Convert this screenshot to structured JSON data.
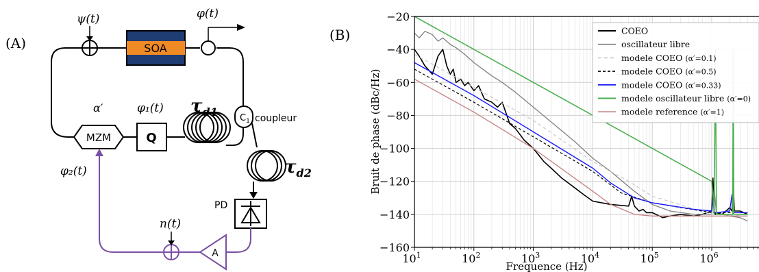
{
  "panel_a": {
    "label": "(A)",
    "psi": "ψ(t)",
    "phi": "φ(t)",
    "soa": "SOA",
    "tau_d1": "τ",
    "tau_d1_sub": "d1",
    "tau_d2": "τ",
    "tau_d2_sub": "d2",
    "alpha": "α′",
    "phi1": "φ₁(t)",
    "phi2": "φ₂(t)",
    "mzm": "MZM",
    "q": "Q",
    "c1": "C",
    "c1_sub": "1",
    "coupler": "coupleur",
    "pd": "PD",
    "n": "n(t)",
    "amp": "A"
  },
  "panel_b": {
    "label": "(B)"
  },
  "colors": {
    "soa_blue": "#1f3c73",
    "soa_orange": "#f08a24",
    "feedback_purple": "#7a4ea3",
    "coeo": "#000000",
    "free": "#808080",
    "model01": "#c8c8c8",
    "model05": "#000000",
    "model033": "#1a1aff",
    "free_model": "#4caf50",
    "reference": "#c48080"
  },
  "chart_data": {
    "type": "line",
    "title": "",
    "xlabel": "Frequence (Hz)",
    "ylabel": "Bruit de phase (dBc/Hz)",
    "xscale": "log",
    "xlim": [
      10,
      4000000
    ],
    "ylim": [
      -160,
      -20
    ],
    "yticks": [
      -160,
      -140,
      -120,
      -100,
      -80,
      -60,
      -40,
      -20
    ],
    "xticks": [
      {
        "value": 10,
        "base": "10",
        "exp": "1"
      },
      {
        "value": 100,
        "base": "10",
        "exp": "2"
      },
      {
        "value": 1000,
        "base": "10",
        "exp": "3"
      },
      {
        "value": 10000,
        "base": "10",
        "exp": "4"
      },
      {
        "value": 100000,
        "base": "10",
        "exp": "5"
      },
      {
        "value": 1000000,
        "base": "10",
        "exp": "6"
      }
    ],
    "grid": true,
    "legend_position": "top-right",
    "series": [
      {
        "key": "coeo",
        "name": "COEO",
        "param": "",
        "color": "#000000",
        "dash": "",
        "width": 1.6,
        "x": [
          10,
          12,
          15,
          20,
          25,
          30,
          35,
          40,
          45,
          50,
          60,
          70,
          80,
          100,
          120,
          150,
          200,
          250,
          300,
          400,
          500,
          700,
          1000,
          1500,
          2000,
          3000,
          5000,
          7000,
          10000,
          20000,
          40000,
          45000,
          50000,
          60000,
          70000,
          80000,
          100000,
          150000,
          200000,
          300000,
          500000,
          700000,
          1000000,
          1050000,
          1100000,
          1150000,
          1200000,
          1500000,
          2000000,
          2200000,
          2300000,
          2400000,
          3000000,
          4000000
        ],
        "y": [
          -40,
          -44,
          -50,
          -55,
          -44,
          -40,
          -50,
          -55,
          -52,
          -60,
          -58,
          -62,
          -60,
          -65,
          -62,
          -70,
          -72,
          -75,
          -72,
          -85,
          -88,
          -95,
          -100,
          -108,
          -112,
          -118,
          -124,
          -128,
          -132,
          -134,
          -135,
          -129,
          -135,
          -138,
          -137,
          -139,
          -139,
          -142,
          -141,
          -140,
          -141,
          -140,
          -138,
          -118,
          -138,
          -140,
          -139,
          -140,
          -136,
          -138,
          -120,
          -138,
          -138,
          -140
        ]
      },
      {
        "key": "free",
        "name": "oscillateur libre",
        "param": "",
        "color": "#808080",
        "dash": "",
        "width": 1.3,
        "x": [
          10,
          12,
          15,
          20,
          25,
          30,
          40,
          50,
          70,
          100,
          200,
          300,
          500,
          1000,
          2000,
          5000,
          10000,
          20000,
          50000,
          100000,
          200000,
          500000,
          1000000,
          1100000,
          1200000,
          1500000,
          2000000,
          3000000,
          4000000
        ],
        "y": [
          -30,
          -33,
          -29,
          -31,
          -35,
          -33,
          -37,
          -39,
          -43,
          -48,
          -56,
          -60,
          -66,
          -75,
          -84,
          -96,
          -106,
          -114,
          -126,
          -134,
          -138,
          -140,
          -140,
          -124,
          -140,
          -140,
          -141,
          -142,
          -144
        ]
      },
      {
        "key": "model01",
        "name": "modele COEO ",
        "param": "(α′=0.1)",
        "color": "#c8c8c8",
        "dash": "5,4",
        "width": 1.2,
        "x": [
          10,
          100,
          1000,
          10000,
          40000,
          100000,
          1000000,
          4000000
        ],
        "y": [
          -43,
          -63,
          -83,
          -108,
          -120,
          -129,
          -140,
          -141
        ]
      },
      {
        "key": "model05",
        "name": "modele COEO ",
        "param": "(α′=0.5)",
        "color": "#000000",
        "dash": "4,3",
        "width": 1.2,
        "x": [
          10,
          100,
          1000,
          10000,
          30000,
          100000,
          1000000,
          4000000
        ],
        "y": [
          -52,
          -72,
          -93,
          -114,
          -127,
          -133,
          -139,
          -139
        ]
      },
      {
        "key": "model033",
        "name": "modele COEO ",
        "param": "(α′=0.33)",
        "color": "#1a1aff",
        "dash": "",
        "width": 1.4,
        "x": [
          10,
          100,
          1000,
          10000,
          20000,
          50000,
          100000,
          500000,
          1000000,
          1050000,
          1100000,
          1150000,
          1200000,
          2000000,
          2200000,
          2300000,
          2400000,
          4000000
        ],
        "y": [
          -48,
          -68,
          -90,
          -112,
          -121,
          -130,
          -133,
          -137,
          -138,
          -130,
          -138,
          -139,
          -139,
          -138,
          -128,
          -138,
          -139,
          -139
        ]
      },
      {
        "key": "free_model",
        "name": "modele oscillateur libre ",
        "param": "(α′=0)",
        "color": "#4caf50",
        "dash": "",
        "width": 1.6,
        "x": [
          10,
          100,
          1000,
          10000,
          100000,
          1000000,
          1100000,
          1150000,
          1200000,
          1250000,
          2000000,
          2250000,
          2300000,
          2350000,
          2400000,
          4000000
        ],
        "y": [
          -20,
          -40,
          -60,
          -80,
          -100,
          -120,
          -140,
          -40,
          -140,
          -140,
          -140,
          -140,
          -40,
          -140,
          -140,
          -140
        ]
      },
      {
        "key": "reference",
        "name": "modele reference ",
        "param": "(α′=1)",
        "color": "#c48080",
        "dash": "",
        "width": 1.3,
        "x": [
          10,
          100,
          1000,
          10000,
          20000,
          50000,
          100000,
          1000000,
          4000000
        ],
        "y": [
          -58,
          -78,
          -100,
          -126,
          -134,
          -140,
          -141,
          -141,
          -141
        ]
      }
    ]
  }
}
